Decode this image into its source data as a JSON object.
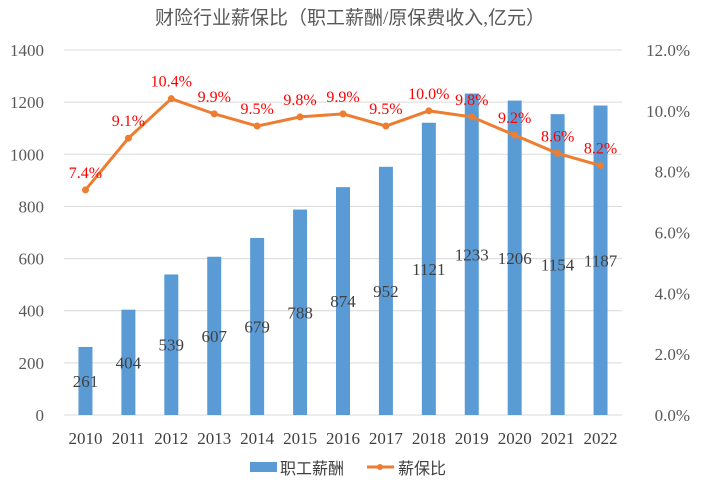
{
  "chart_data": {
    "type": "bar+line",
    "title": "财险行业薪保比（职工薪酬/原保费收入,亿元）",
    "categories": [
      "2010",
      "2011",
      "2012",
      "2013",
      "2014",
      "2015",
      "2016",
      "2017",
      "2018",
      "2019",
      "2020",
      "2021",
      "2022"
    ],
    "series": [
      {
        "name": "职工薪酬",
        "type": "bar",
        "axis": "left",
        "color": "#5B9BD5",
        "values": [
          261,
          404,
          539,
          607,
          679,
          788,
          874,
          952,
          1121,
          1233,
          1206,
          1154,
          1187
        ],
        "labels": [
          "261",
          "404",
          "539",
          "607",
          "679",
          "788",
          "874",
          "952",
          "1121",
          "1233",
          "1206",
          "1154",
          "1187"
        ]
      },
      {
        "name": "薪保比",
        "type": "line",
        "axis": "right",
        "color": "#ED7D31",
        "label_color": "#FF0000",
        "values": [
          7.4,
          9.1,
          10.4,
          9.9,
          9.5,
          9.8,
          9.9,
          9.5,
          10.0,
          9.8,
          9.2,
          8.6,
          8.2
        ],
        "labels": [
          "7.4%",
          "9.1%",
          "10.4%",
          "9.9%",
          "9.5%",
          "9.8%",
          "9.9%",
          "9.5%",
          "10.0%",
          "9.8%",
          "9.2%",
          "8.6%",
          "8.2%"
        ]
      }
    ],
    "y_left": {
      "min": 0,
      "max": 1400,
      "ticks": [
        "0",
        "200",
        "400",
        "600",
        "800",
        "1000",
        "1200",
        "1400"
      ]
    },
    "y_right": {
      "min": 0,
      "max": 12,
      "ticks": [
        "0.0%",
        "2.0%",
        "4.0%",
        "6.0%",
        "8.0%",
        "10.0%",
        "12.0%"
      ]
    },
    "grid": true,
    "legend": "bottom"
  }
}
